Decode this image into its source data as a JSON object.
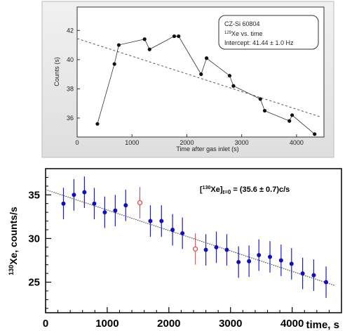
{
  "chart_data": [
    {
      "type": "line",
      "title": "",
      "xlabel": "Time after gas inlet (s)",
      "ylabel": "Counts (s)",
      "xlim": [
        0,
        4500
      ],
      "ylim": [
        34.7,
        43.6
      ],
      "x_ticks": [
        "0",
        "1000",
        "2000",
        "3000",
        "4000"
      ],
      "y_ticks": [
        "36",
        "38",
        "40",
        "42"
      ],
      "x_tick_values": [
        0,
        1000,
        2000,
        3000,
        4000
      ],
      "y_tick_values": [
        36,
        38,
        40,
        42
      ],
      "grid": false,
      "annotation": {
        "line1": "CZ-Si 60804",
        "line2_sup": "129",
        "line2_rest": "Xe vs. time",
        "line3": "Intercept: 41.44 ± 1.0 Hz"
      },
      "series": [
        {
          "points": [
            [
              370,
              35.6
            ],
            [
              680,
              39.7
            ],
            [
              760,
              41.0
            ],
            [
              1230,
              41.4
            ],
            [
              1320,
              40.7
            ],
            [
              1770,
              41.6
            ],
            [
              1850,
              41.6
            ],
            [
              2260,
              39.0
            ],
            [
              2360,
              40.1
            ],
            [
              2780,
              38.9
            ],
            [
              2850,
              38.2
            ],
            [
              3340,
              37.3
            ],
            [
              3420,
              36.5
            ],
            [
              3870,
              35.8
            ],
            [
              3920,
              36.2
            ],
            [
              4330,
              34.9
            ]
          ]
        }
      ],
      "fit_line": {
        "x": [
          0,
          4420
        ],
        "y": [
          41.44,
          36.1
        ]
      },
      "colors": {
        "points": "#111111",
        "line": "#333333",
        "fit": "#555555"
      }
    },
    {
      "type": "scatter",
      "title": "",
      "xlabel": "time, s",
      "ylabel_sup": "130",
      "ylabel_rest": "Xe, counts/s",
      "xlim": [
        0,
        4800
      ],
      "ylim": [
        21.5,
        38
      ],
      "x_ticks": [
        "0",
        "1000",
        "2000",
        "3000",
        "4000"
      ],
      "y_ticks": [
        "25",
        "30",
        "35"
      ],
      "x_tick_values": [
        0,
        1000,
        2000,
        3000,
        4000
      ],
      "y_tick_values": [
        25,
        30,
        35
      ],
      "grid": false,
      "annotation": {
        "pre": "[",
        "sup": "130",
        "mid": "Xe]",
        "sub": "t=0",
        "post": " = (35.6 ± 0.7)c/s"
      },
      "series": [
        {
          "marker": "filled-circle",
          "points": [
            {
              "x": 290,
              "y": 34.0,
              "err": 1.8
            },
            {
              "x": 460,
              "y": 35.0,
              "err": 1.8
            },
            {
              "x": 630,
              "y": 35.3,
              "err": 1.8
            },
            {
              "x": 790,
              "y": 34.0,
              "err": 1.8
            },
            {
              "x": 960,
              "y": 33.0,
              "err": 1.8
            },
            {
              "x": 1130,
              "y": 33.2,
              "err": 1.8
            },
            {
              "x": 1300,
              "y": 33.8,
              "err": 1.8
            },
            {
              "x": 1700,
              "y": 32.0,
              "err": 1.8
            },
            {
              "x": 1880,
              "y": 32.0,
              "err": 1.8
            },
            {
              "x": 2060,
              "y": 31.0,
              "err": 1.8
            },
            {
              "x": 2220,
              "y": 30.6,
              "err": 1.8
            },
            {
              "x": 2600,
              "y": 28.7,
              "err": 1.8
            },
            {
              "x": 2770,
              "y": 29.0,
              "err": 1.8
            },
            {
              "x": 2940,
              "y": 28.7,
              "err": 1.8
            },
            {
              "x": 3130,
              "y": 27.3,
              "err": 1.8
            },
            {
              "x": 3300,
              "y": 27.4,
              "err": 1.8
            },
            {
              "x": 3460,
              "y": 28.1,
              "err": 1.8
            },
            {
              "x": 3640,
              "y": 27.9,
              "err": 1.8
            },
            {
              "x": 3820,
              "y": 27.5,
              "err": 1.8
            },
            {
              "x": 3990,
              "y": 27.1,
              "err": 1.8
            },
            {
              "x": 4170,
              "y": 26.0,
              "err": 1.8
            },
            {
              "x": 4350,
              "y": 25.8,
              "err": 1.8
            },
            {
              "x": 4550,
              "y": 25.0,
              "err": 1.8
            }
          ]
        },
        {
          "marker": "open-circle",
          "points": [
            {
              "x": 1530,
              "y": 34.1,
              "err": 1.8
            },
            {
              "x": 2430,
              "y": 28.8,
              "err": 1.8
            }
          ]
        }
      ],
      "fit_line": {
        "x": [
          0,
          4700
        ],
        "y": [
          35.6,
          24.6
        ]
      },
      "colors": {
        "points": "#1010b8",
        "errorbars": "#1a1ad8",
        "outliers": "#e04040",
        "fit": "#444444"
      }
    }
  ]
}
